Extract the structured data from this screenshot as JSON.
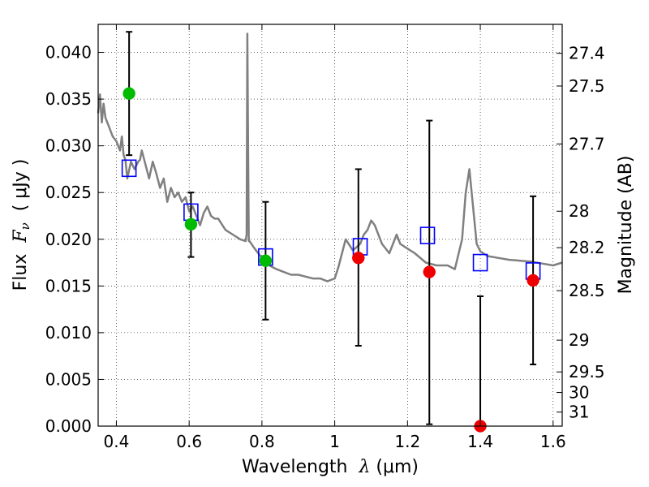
{
  "chart_data": {
    "type": "scatter",
    "xlabel": {
      "prefix": "Wavelength  ",
      "symbol": "λ",
      "unit": " (μm)"
    },
    "ylabel": {
      "prefix": "Flux  ",
      "symbol": "F",
      "subscript": "ν",
      "unit": "  ( μJy )"
    },
    "y2label": "Magnitude (AB)",
    "xlim": [
      0.35,
      1.625
    ],
    "ylim": [
      0.0,
      0.043
    ],
    "grid": true,
    "x_ticks": [
      {
        "value": 0.4,
        "label": "0.4"
      },
      {
        "value": 0.6,
        "label": "0.6"
      },
      {
        "value": 0.8,
        "label": "0.8"
      },
      {
        "value": 1.0,
        "label": "1"
      },
      {
        "value": 1.2,
        "label": "1.2"
      },
      {
        "value": 1.4,
        "label": "1.4"
      },
      {
        "value": 1.6,
        "label": "1.6"
      }
    ],
    "y_ticks": [
      {
        "value": 0.0,
        "label": "0.000"
      },
      {
        "value": 0.005,
        "label": "0.005"
      },
      {
        "value": 0.01,
        "label": "0.010"
      },
      {
        "value": 0.015,
        "label": "0.015"
      },
      {
        "value": 0.02,
        "label": "0.020"
      },
      {
        "value": 0.025,
        "label": "0.025"
      },
      {
        "value": 0.03,
        "label": "0.030"
      },
      {
        "value": 0.035,
        "label": "0.035"
      },
      {
        "value": 0.04,
        "label": "0.040"
      }
    ],
    "y2_ticks": [
      {
        "label": "27.4",
        "flux": 0.0399
      },
      {
        "label": "27.5",
        "flux": 0.0364
      },
      {
        "label": "27.7",
        "flux": 0.0302
      },
      {
        "label": "28",
        "flux": 0.023
      },
      {
        "label": "28.2",
        "flux": 0.0191
      },
      {
        "label": "28.5",
        "flux": 0.0145
      },
      {
        "label": "29",
        "flux": 0.0092
      },
      {
        "label": "29.5",
        "flux": 0.0058
      },
      {
        "label": "30",
        "flux": 0.0036
      },
      {
        "label": "31",
        "flux": 0.0015
      }
    ],
    "model_spectrum": {
      "color": "#808080",
      "x": [
        0.35,
        0.355,
        0.36,
        0.365,
        0.37,
        0.38,
        0.39,
        0.4,
        0.41,
        0.415,
        0.42,
        0.425,
        0.43,
        0.44,
        0.45,
        0.46,
        0.465,
        0.47,
        0.48,
        0.49,
        0.5,
        0.51,
        0.52,
        0.53,
        0.54,
        0.55,
        0.56,
        0.57,
        0.58,
        0.59,
        0.6,
        0.61,
        0.62,
        0.63,
        0.64,
        0.65,
        0.66,
        0.67,
        0.68,
        0.7,
        0.72,
        0.74,
        0.755,
        0.758,
        0.76,
        0.762,
        0.764,
        0.766,
        0.78,
        0.8,
        0.82,
        0.84,
        0.86,
        0.88,
        0.9,
        0.92,
        0.94,
        0.96,
        0.98,
        1.0,
        1.01,
        1.02,
        1.03,
        1.05,
        1.07,
        1.08,
        1.09,
        1.1,
        1.11,
        1.12,
        1.13,
        1.15,
        1.17,
        1.18,
        1.2,
        1.22,
        1.25,
        1.28,
        1.31,
        1.33,
        1.35,
        1.36,
        1.37,
        1.38,
        1.39,
        1.4,
        1.42,
        1.45,
        1.48,
        1.51,
        1.54,
        1.57,
        1.6,
        1.625
      ],
      "y": [
        0.0335,
        0.0355,
        0.0325,
        0.0345,
        0.033,
        0.032,
        0.031,
        0.0305,
        0.0295,
        0.031,
        0.029,
        0.0285,
        0.0265,
        0.0283,
        0.0275,
        0.0283,
        0.0285,
        0.0295,
        0.028,
        0.0265,
        0.0283,
        0.027,
        0.0255,
        0.0265,
        0.024,
        0.0255,
        0.0245,
        0.025,
        0.024,
        0.0245,
        0.023,
        0.0235,
        0.0225,
        0.0215,
        0.0228,
        0.0235,
        0.0225,
        0.0222,
        0.0222,
        0.021,
        0.0205,
        0.02,
        0.0198,
        0.0205,
        0.042,
        0.03,
        0.0198,
        0.0198,
        0.019,
        0.018,
        0.0172,
        0.0168,
        0.0165,
        0.0162,
        0.0162,
        0.016,
        0.0158,
        0.0158,
        0.0155,
        0.0158,
        0.017,
        0.0185,
        0.02,
        0.0188,
        0.0195,
        0.0205,
        0.021,
        0.022,
        0.0215,
        0.0205,
        0.0195,
        0.0185,
        0.0205,
        0.0195,
        0.019,
        0.0185,
        0.0175,
        0.0172,
        0.0172,
        0.0168,
        0.02,
        0.025,
        0.0275,
        0.0235,
        0.0195,
        0.0187,
        0.0182,
        0.018,
        0.0178,
        0.0177,
        0.0176,
        0.0174,
        0.0172,
        0.0175
      ]
    },
    "model_bands": {
      "color": "#0000ff",
      "x": [
        0.435,
        0.605,
        0.81,
        1.07,
        1.255,
        1.4,
        1.545
      ],
      "y": [
        0.0276,
        0.0229,
        0.0181,
        0.0192,
        0.0204,
        0.0175,
        0.0166
      ]
    },
    "observed": {
      "green_color": "#00bb00",
      "red_color": "#ee0000",
      "errorbar_color": "#000000",
      "points": [
        {
          "x": 0.435,
          "y": 0.0356,
          "err_low": 0.0066,
          "err_high": 0.0066,
          "color": "green"
        },
        {
          "x": 0.605,
          "y": 0.0216,
          "err_low": 0.0035,
          "err_high": 0.0034,
          "color": "green"
        },
        {
          "x": 0.81,
          "y": 0.0177,
          "err_low": 0.0063,
          "err_high": 0.0063,
          "color": "green"
        },
        {
          "x": 1.065,
          "y": 0.018,
          "err_low": 0.0094,
          "err_high": 0.0095,
          "color": "red"
        },
        {
          "x": 1.26,
          "y": 0.0165,
          "err_low": 0.0163,
          "err_high": 0.0162,
          "color": "red"
        },
        {
          "x": 1.4,
          "y": 0.0,
          "err_low": 0.0,
          "err_high": 0.0139,
          "color": "red"
        },
        {
          "x": 1.545,
          "y": 0.0156,
          "err_low": 0.009,
          "err_high": 0.009,
          "color": "red"
        }
      ]
    }
  }
}
